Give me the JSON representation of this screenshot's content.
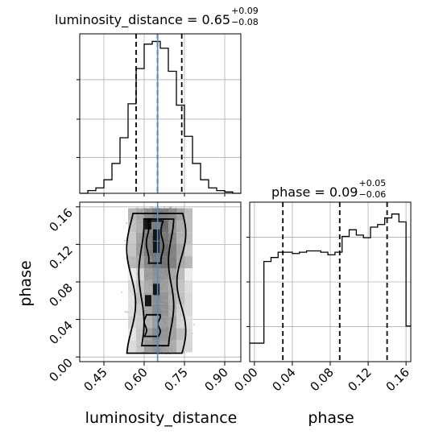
{
  "chart_data": [
    {
      "type": "histogram",
      "panel": "top-left",
      "param": "luminosity_distance",
      "title": "luminosity_distance = 0.65",
      "title_value": "0.65",
      "title_err_plus": "+0.09",
      "title_err_minus": "−0.08",
      "xlim": [
        0.36,
        0.96
      ],
      "bin_edges": [
        0.36,
        0.39,
        0.42,
        0.45,
        0.48,
        0.51,
        0.54,
        0.57,
        0.6,
        0.63,
        0.66,
        0.69,
        0.72,
        0.75,
        0.78,
        0.81,
        0.84,
        0.87,
        0.9,
        0.93,
        0.96
      ],
      "counts": [
        0,
        2,
        4,
        10,
        22,
        41,
        66,
        92,
        110,
        112,
        107,
        90,
        65,
        42,
        22,
        10,
        4,
        2,
        1,
        0
      ],
      "quantile_lines": [
        0.57,
        0.65,
        0.74
      ],
      "truth": 0.65,
      "grid": true
    },
    {
      "type": "histogram",
      "panel": "bottom-right",
      "param": "phase",
      "title": "phase = 0.09",
      "title_value": "0.09",
      "title_err_plus": "+0.05",
      "title_err_minus": "−0.06",
      "xlim": [
        -0.005,
        0.165
      ],
      "xticks": [
        "0.00",
        "0.04",
        "0.08",
        "0.12",
        "0.16"
      ],
      "xtick_values": [
        0.0,
        0.04,
        0.08,
        0.12,
        0.16
      ],
      "xlabel": "phase",
      "bin_edges": [
        -0.005,
        0.0025,
        0.01,
        0.0175,
        0.025,
        0.0325,
        0.04,
        0.0475,
        0.055,
        0.0625,
        0.07,
        0.0775,
        0.085,
        0.0925,
        0.1,
        0.1075,
        0.115,
        0.1225,
        0.13,
        0.1375,
        0.145,
        0.1525,
        0.16,
        0.165
      ],
      "counts": [
        14,
        14,
        76,
        79,
        83,
        83,
        82,
        83,
        84,
        84,
        83,
        81,
        83,
        95,
        100,
        96,
        94,
        102,
        104,
        109,
        112,
        106,
        27
      ],
      "quantile_lines": [
        0.03,
        0.09,
        0.14
      ],
      "grid": true
    },
    {
      "type": "scatter-density",
      "panel": "bottom-left",
      "x_param": "luminosity_distance",
      "y_param": "phase",
      "xlabel": "luminosity_distance",
      "ylabel": "phase",
      "xlim": [
        0.36,
        0.96
      ],
      "ylim": [
        -0.005,
        0.165
      ],
      "xticks": [
        "0.45",
        "0.60",
        "0.75",
        "0.90"
      ],
      "xtick_values": [
        0.45,
        0.6,
        0.75,
        0.9
      ],
      "yticks": [
        "0.00",
        "0.04",
        "0.08",
        "0.12",
        "0.16"
      ],
      "ytick_values": [
        0.0,
        0.04,
        0.08,
        0.12,
        0.16
      ],
      "truth_x": 0.65,
      "point_cloud": {
        "x_center": 0.65,
        "x_spread": 0.085,
        "y_range": [
          0.003,
          0.16
        ]
      },
      "grid": true
    }
  ],
  "colors": {
    "line": "#000000",
    "truth": "#4a8fd4",
    "grid": "#b0b0b0",
    "scatter": "#9a9a9a"
  }
}
